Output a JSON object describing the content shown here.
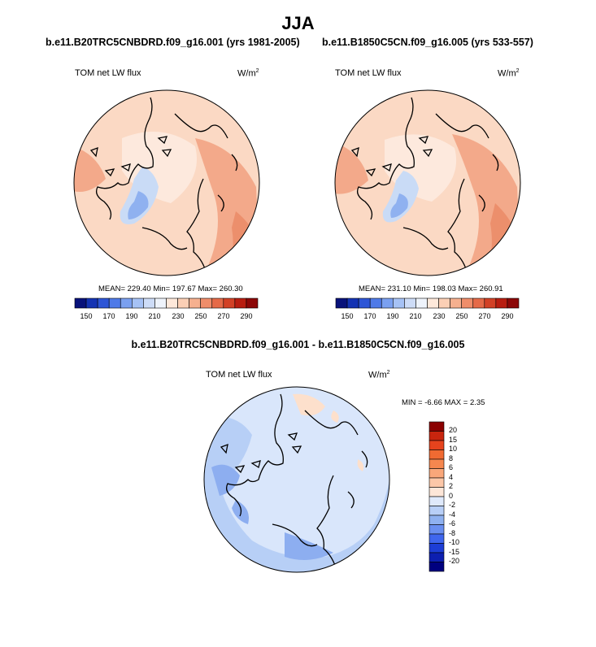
{
  "page": {
    "title": "JJA"
  },
  "panels": {
    "left": {
      "case": "b.e11.B20TRC5CNBDRD.f09_g16.001 (yrs 1981-2005)",
      "variable": "TOM net LW flux",
      "units_base": "W/m",
      "units_exp": "2",
      "stats": "MEAN= 229.40  Min= 197.67  Max= 260.30"
    },
    "right": {
      "case": "b.e11.B1850C5CN.f09_g16.005 (yrs 533-557)",
      "variable": "TOM net LW flux",
      "units_base": "W/m",
      "units_exp": "2",
      "stats": "MEAN= 231.10  Min= 198.03  Max= 260.91"
    },
    "diff": {
      "case": "b.e11.B20TRC5CNBDRD.f09_g16.001 - b.e11.B1850C5CN.f09_g16.005",
      "variable": "TOM net LW flux",
      "units_base": "W/m",
      "units_exp": "2",
      "stats": "MIN =  -6.66 MAX =   2.35"
    }
  },
  "colorbars": {
    "abs": {
      "labels": [
        "150",
        "170",
        "190",
        "210",
        "230",
        "250",
        "270",
        "290"
      ],
      "colors": [
        "#08127a",
        "#1433b3",
        "#2d55d6",
        "#4f7ae8",
        "#7aa0f0",
        "#a6c2f5",
        "#cddcf7",
        "#eef3fb",
        "#fde8da",
        "#fbcfb5",
        "#f6b08f",
        "#ef8d6a",
        "#e56a48",
        "#d24126",
        "#b81d10",
        "#8c0707"
      ]
    },
    "diff": {
      "labels": [
        "20",
        "15",
        "10",
        "8",
        "6",
        "4",
        "2",
        "0",
        "-2",
        "-4",
        "-6",
        "-8",
        "-10",
        "-15",
        "-20"
      ],
      "colors": [
        "#8b0000",
        "#c8250e",
        "#e6431d",
        "#f06a32",
        "#f5874f",
        "#f9a77a",
        "#fcc7a8",
        "#fde6d8",
        "#dfe9fb",
        "#b8cff7",
        "#8fb1f0",
        "#6a8ff0",
        "#3f66ee",
        "#1d3ed6",
        "#0d1fb0",
        "#00007f"
      ]
    }
  },
  "map_colors": {
    "abs_base": "#fbd9c4",
    "abs_warm": "#f3a98a",
    "abs_hot": "#ec8f6c",
    "abs_pale": "#fde9dd",
    "abs_cool": "#c9dbf6",
    "abs_blue": "#8fb1f0",
    "diff_base": "#d9e6fb",
    "diff_mid": "#b7cff6",
    "diff_dark": "#8daef0",
    "diff_warm": "#fde0cc"
  }
}
